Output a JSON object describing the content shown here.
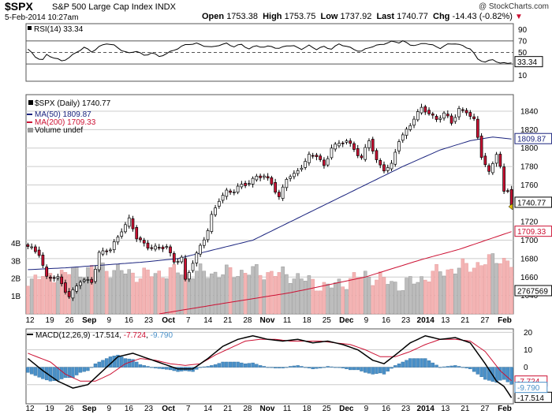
{
  "header": {
    "symbol": "$SPX",
    "fullname": "S&P 500 Large Cap Index  INDX",
    "watermark": "@ StockCharts.com",
    "date_time": "5-Feb-2014 10:27am",
    "open_label": "Open",
    "open": "1753.38",
    "high_label": "High",
    "high": "1753.75",
    "low_label": "Low",
    "low": "1737.92",
    "last_label": "Last",
    "last": "1740.77",
    "chg_label": "Chg",
    "chg": "-14.43 (-0.82%)",
    "chg_arrow": "▼"
  },
  "colors": {
    "up_candle": "#ffffff",
    "down_candle": "#cc1133",
    "ma50": "#1a237e",
    "ma200": "#cc1133",
    "volume_up": "#bdbdbd",
    "volume_down": "#f4b4b4",
    "macd_line": "#000000",
    "signal_line": "#cc1133",
    "histogram": "#4a90c8",
    "grid": "#cccccc",
    "background": "#ffffff"
  },
  "x_axis": {
    "labels": [
      {
        "text": "12",
        "bold": false
      },
      {
        "text": "19",
        "bold": false
      },
      {
        "text": "26",
        "bold": false
      },
      {
        "text": "Sep",
        "bold": true
      },
      {
        "text": "9",
        "bold": false
      },
      {
        "text": "16",
        "bold": false
      },
      {
        "text": "23",
        "bold": false
      },
      {
        "text": "Oct",
        "bold": true
      },
      {
        "text": "7",
        "bold": false
      },
      {
        "text": "14",
        "bold": false
      },
      {
        "text": "21",
        "bold": false
      },
      {
        "text": "28",
        "bold": false
      },
      {
        "text": "Nov",
        "bold": true
      },
      {
        "text": "11",
        "bold": false
      },
      {
        "text": "18",
        "bold": false
      },
      {
        "text": "25",
        "bold": false
      },
      {
        "text": "Dec",
        "bold": true
      },
      {
        "text": "9",
        "bold": false
      },
      {
        "text": "16",
        "bold": false
      },
      {
        "text": "23",
        "bold": false
      },
      {
        "text": "2014",
        "bold": true
      },
      {
        "text": "13",
        "bold": false
      },
      {
        "text": "21",
        "bold": false
      },
      {
        "text": "27",
        "bold": false
      },
      {
        "text": "Feb",
        "bold": true
      }
    ]
  },
  "chart_data": [
    {
      "type": "line",
      "panel": "rsi",
      "title": "RSI(14) 33.34",
      "ylim": [
        0,
        100
      ],
      "y_ticks": [
        "90",
        "70",
        "50",
        "30",
        "10"
      ],
      "reference_lines": [
        70,
        50,
        30
      ],
      "current_label": "33.34",
      "keypoints": [
        {
          "x": 0,
          "y": 55
        },
        {
          "x": 2,
          "y": 42
        },
        {
          "x": 4,
          "y": 38
        },
        {
          "x": 5,
          "y": 46
        },
        {
          "x": 7,
          "y": 40
        },
        {
          "x": 9,
          "y": 35
        },
        {
          "x": 11,
          "y": 42
        },
        {
          "x": 13,
          "y": 50
        },
        {
          "x": 15,
          "y": 58
        },
        {
          "x": 17,
          "y": 52
        },
        {
          "x": 19,
          "y": 60
        },
        {
          "x": 21,
          "y": 65
        },
        {
          "x": 23,
          "y": 62
        },
        {
          "x": 25,
          "y": 55
        },
        {
          "x": 27,
          "y": 48
        },
        {
          "x": 29,
          "y": 52
        },
        {
          "x": 31,
          "y": 45
        },
        {
          "x": 33,
          "y": 50
        },
        {
          "x": 35,
          "y": 42
        },
        {
          "x": 37,
          "y": 48
        },
        {
          "x": 39,
          "y": 55
        },
        {
          "x": 41,
          "y": 60
        },
        {
          "x": 43,
          "y": 64
        },
        {
          "x": 45,
          "y": 66
        },
        {
          "x": 47,
          "y": 62
        },
        {
          "x": 49,
          "y": 58
        },
        {
          "x": 51,
          "y": 63
        },
        {
          "x": 53,
          "y": 66
        },
        {
          "x": 55,
          "y": 60
        },
        {
          "x": 57,
          "y": 63
        },
        {
          "x": 59,
          "y": 57
        },
        {
          "x": 61,
          "y": 62
        },
        {
          "x": 63,
          "y": 58
        },
        {
          "x": 65,
          "y": 61
        },
        {
          "x": 67,
          "y": 57
        },
        {
          "x": 69,
          "y": 62
        },
        {
          "x": 71,
          "y": 60
        },
        {
          "x": 73,
          "y": 57
        },
        {
          "x": 75,
          "y": 62
        },
        {
          "x": 77,
          "y": 55
        },
        {
          "x": 79,
          "y": 60
        },
        {
          "x": 81,
          "y": 57
        },
        {
          "x": 83,
          "y": 64
        },
        {
          "x": 85,
          "y": 60
        },
        {
          "x": 87,
          "y": 56
        },
        {
          "x": 89,
          "y": 52
        },
        {
          "x": 91,
          "y": 58
        },
        {
          "x": 93,
          "y": 62
        },
        {
          "x": 95,
          "y": 66
        },
        {
          "x": 97,
          "y": 68
        },
        {
          "x": 99,
          "y": 67
        },
        {
          "x": 100,
          "y": 70
        },
        {
          "x": 102,
          "y": 64
        },
        {
          "x": 104,
          "y": 62
        },
        {
          "x": 106,
          "y": 66
        },
        {
          "x": 108,
          "y": 63
        },
        {
          "x": 110,
          "y": 58
        },
        {
          "x": 112,
          "y": 63
        },
        {
          "x": 114,
          "y": 66
        },
        {
          "x": 116,
          "y": 62
        },
        {
          "x": 118,
          "y": 56
        },
        {
          "x": 120,
          "y": 38
        },
        {
          "x": 122,
          "y": 34
        },
        {
          "x": 124,
          "y": 38
        },
        {
          "x": 126,
          "y": 30
        },
        {
          "x": 128,
          "y": 32
        },
        {
          "x": 129,
          "y": 33.34
        }
      ]
    },
    {
      "type": "candlestick",
      "panel": "price",
      "title": "$SPX (Daily) 1740.77",
      "ylim": [
        1620,
        1858
      ],
      "y_ticks": [
        "1840",
        "1820",
        "1800",
        "1780",
        "1760",
        "1740",
        "1720",
        "1700",
        "1680",
        "1660",
        "1640"
      ],
      "legend": [
        "$SPX (Daily) 1740.77",
        "MA(50) 1809.87",
        "MA(200) 1709.33",
        "Volume undef"
      ],
      "current_labels": {
        "price": "1740.77",
        "ma50": "1809.87",
        "ma200": "1709.33"
      },
      "close_keypoints": [
        {
          "x": 0,
          "y": 1692
        },
        {
          "x": 3,
          "y": 1686
        },
        {
          "x": 5,
          "y": 1660
        },
        {
          "x": 8,
          "y": 1658
        },
        {
          "x": 11,
          "y": 1640
        },
        {
          "x": 14,
          "y": 1655
        },
        {
          "x": 17,
          "y": 1656
        },
        {
          "x": 19,
          "y": 1686
        },
        {
          "x": 22,
          "y": 1689
        },
        {
          "x": 25,
          "y": 1712
        },
        {
          "x": 27,
          "y": 1722
        },
        {
          "x": 29,
          "y": 1702
        },
        {
          "x": 32,
          "y": 1694
        },
        {
          "x": 35,
          "y": 1690
        },
        {
          "x": 37,
          "y": 1693
        },
        {
          "x": 39,
          "y": 1678
        },
        {
          "x": 41,
          "y": 1680
        },
        {
          "x": 42,
          "y": 1655
        },
        {
          "x": 44,
          "y": 1676
        },
        {
          "x": 46,
          "y": 1695
        },
        {
          "x": 48,
          "y": 1710
        },
        {
          "x": 49,
          "y": 1725
        },
        {
          "x": 51,
          "y": 1744
        },
        {
          "x": 53,
          "y": 1754
        },
        {
          "x": 55,
          "y": 1753
        },
        {
          "x": 57,
          "y": 1759
        },
        {
          "x": 59,
          "y": 1763
        },
        {
          "x": 61,
          "y": 1770
        },
        {
          "x": 63,
          "y": 1768
        },
        {
          "x": 65,
          "y": 1762
        },
        {
          "x": 67,
          "y": 1747
        },
        {
          "x": 69,
          "y": 1767
        },
        {
          "x": 71,
          "y": 1770
        },
        {
          "x": 73,
          "y": 1781
        },
        {
          "x": 75,
          "y": 1792
        },
        {
          "x": 77,
          "y": 1791
        },
        {
          "x": 79,
          "y": 1780
        },
        {
          "x": 81,
          "y": 1802
        },
        {
          "x": 83,
          "y": 1804
        },
        {
          "x": 85,
          "y": 1807
        },
        {
          "x": 87,
          "y": 1800
        },
        {
          "x": 89,
          "y": 1789
        },
        {
          "x": 91,
          "y": 1808
        },
        {
          "x": 93,
          "y": 1786
        },
        {
          "x": 95,
          "y": 1778
        },
        {
          "x": 97,
          "y": 1781
        },
        {
          "x": 99,
          "y": 1808
        },
        {
          "x": 101,
          "y": 1820
        },
        {
          "x": 103,
          "y": 1833
        },
        {
          "x": 105,
          "y": 1842
        },
        {
          "x": 107,
          "y": 1838
        },
        {
          "x": 109,
          "y": 1832
        },
        {
          "x": 111,
          "y": 1837
        },
        {
          "x": 113,
          "y": 1827
        },
        {
          "x": 115,
          "y": 1843
        },
        {
          "x": 117,
          "y": 1840
        },
        {
          "x": 119,
          "y": 1829
        },
        {
          "x": 121,
          "y": 1792
        },
        {
          "x": 123,
          "y": 1774
        },
        {
          "x": 125,
          "y": 1794
        },
        {
          "x": 126,
          "y": 1778
        },
        {
          "x": 127,
          "y": 1751
        },
        {
          "x": 128,
          "y": 1755
        },
        {
          "x": 129,
          "y": 1740.77
        }
      ],
      "ma50_keypoints": [
        {
          "x": 0,
          "y": 1668
        },
        {
          "x": 10,
          "y": 1670
        },
        {
          "x": 20,
          "y": 1673
        },
        {
          "x": 30,
          "y": 1676
        },
        {
          "x": 40,
          "y": 1680
        },
        {
          "x": 50,
          "y": 1690
        },
        {
          "x": 60,
          "y": 1700
        },
        {
          "x": 70,
          "y": 1720
        },
        {
          "x": 80,
          "y": 1740
        },
        {
          "x": 90,
          "y": 1760
        },
        {
          "x": 100,
          "y": 1780
        },
        {
          "x": 110,
          "y": 1798
        },
        {
          "x": 118,
          "y": 1808
        },
        {
          "x": 124,
          "y": 1812
        },
        {
          "x": 129,
          "y": 1809.87
        }
      ],
      "ma200_keypoints": [
        {
          "x": 35,
          "y": 1620
        },
        {
          "x": 50,
          "y": 1630
        },
        {
          "x": 70,
          "y": 1643
        },
        {
          "x": 90,
          "y": 1660
        },
        {
          "x": 105,
          "y": 1679
        },
        {
          "x": 115,
          "y": 1690
        },
        {
          "x": 129,
          "y": 1709.33
        }
      ]
    },
    {
      "type": "bar",
      "panel": "volume",
      "title": "Volume undef",
      "ylim": [
        0,
        5
      ],
      "y_ticks": [
        "4B",
        "3B",
        "2B",
        "1B"
      ],
      "current_label": "2767569",
      "keypoints": [
        {
          "x": 0,
          "y": 2.0
        },
        {
          "x": 10,
          "y": 2.3
        },
        {
          "x": 20,
          "y": 2.6
        },
        {
          "x": 30,
          "y": 2.2
        },
        {
          "x": 40,
          "y": 2.4
        },
        {
          "x": 50,
          "y": 2.3
        },
        {
          "x": 60,
          "y": 2.4
        },
        {
          "x": 70,
          "y": 2.2
        },
        {
          "x": 80,
          "y": 1.5
        },
        {
          "x": 90,
          "y": 2.2
        },
        {
          "x": 100,
          "y": 1.6
        },
        {
          "x": 110,
          "y": 2.4
        },
        {
          "x": 120,
          "y": 2.8
        },
        {
          "x": 126,
          "y": 3.2
        },
        {
          "x": 129,
          "y": 2.8
        }
      ]
    },
    {
      "type": "line",
      "panel": "macd",
      "title": "MACD(12,26,9) -17.514, -7.724, -9.790",
      "series_names": {
        "macd": "MACD(12,26,9)",
        "signal": "-7.724",
        "histogram": "-9.790"
      },
      "ylim": [
        -21,
        22
      ],
      "y_ticks": [
        "20",
        "10",
        "0",
        "-10"
      ],
      "current_labels": {
        "macd": "-17.514",
        "signal": "-7.724",
        "histogram": "-9.790"
      },
      "macd_keypoints": [
        {
          "x": 0,
          "y": 5
        },
        {
          "x": 4,
          "y": -2
        },
        {
          "x": 8,
          "y": -8
        },
        {
          "x": 12,
          "y": -12
        },
        {
          "x": 16,
          "y": -10
        },
        {
          "x": 20,
          "y": -2
        },
        {
          "x": 24,
          "y": 6
        },
        {
          "x": 28,
          "y": 8
        },
        {
          "x": 32,
          "y": 5
        },
        {
          "x": 36,
          "y": 2
        },
        {
          "x": 40,
          "y": -1
        },
        {
          "x": 44,
          "y": -1
        },
        {
          "x": 48,
          "y": 5
        },
        {
          "x": 52,
          "y": 12
        },
        {
          "x": 56,
          "y": 16
        },
        {
          "x": 60,
          "y": 18
        },
        {
          "x": 64,
          "y": 16
        },
        {
          "x": 68,
          "y": 15
        },
        {
          "x": 72,
          "y": 16
        },
        {
          "x": 76,
          "y": 14
        },
        {
          "x": 80,
          "y": 15
        },
        {
          "x": 84,
          "y": 13
        },
        {
          "x": 88,
          "y": 10
        },
        {
          "x": 92,
          "y": 4
        },
        {
          "x": 95,
          "y": 2
        },
        {
          "x": 98,
          "y": 7
        },
        {
          "x": 102,
          "y": 14
        },
        {
          "x": 106,
          "y": 18
        },
        {
          "x": 110,
          "y": 16
        },
        {
          "x": 114,
          "y": 17
        },
        {
          "x": 118,
          "y": 14
        },
        {
          "x": 122,
          "y": 2
        },
        {
          "x": 125,
          "y": -8
        },
        {
          "x": 127,
          "y": -11
        },
        {
          "x": 129,
          "y": -17.514
        }
      ],
      "signal_keypoints": [
        {
          "x": 0,
          "y": 8
        },
        {
          "x": 6,
          "y": 3
        },
        {
          "x": 10,
          "y": -4
        },
        {
          "x": 14,
          "y": -8
        },
        {
          "x": 18,
          "y": -8
        },
        {
          "x": 22,
          "y": -4
        },
        {
          "x": 26,
          "y": 2
        },
        {
          "x": 30,
          "y": 5
        },
        {
          "x": 34,
          "y": 4
        },
        {
          "x": 38,
          "y": 2
        },
        {
          "x": 42,
          "y": 1
        },
        {
          "x": 46,
          "y": 2
        },
        {
          "x": 50,
          "y": 7
        },
        {
          "x": 54,
          "y": 11
        },
        {
          "x": 58,
          "y": 15
        },
        {
          "x": 62,
          "y": 16
        },
        {
          "x": 66,
          "y": 16
        },
        {
          "x": 70,
          "y": 15
        },
        {
          "x": 74,
          "y": 15
        },
        {
          "x": 78,
          "y": 15
        },
        {
          "x": 82,
          "y": 14
        },
        {
          "x": 86,
          "y": 13
        },
        {
          "x": 90,
          "y": 10
        },
        {
          "x": 94,
          "y": 6
        },
        {
          "x": 98,
          "y": 6
        },
        {
          "x": 102,
          "y": 9
        },
        {
          "x": 106,
          "y": 13
        },
        {
          "x": 110,
          "y": 16
        },
        {
          "x": 114,
          "y": 16
        },
        {
          "x": 118,
          "y": 15
        },
        {
          "x": 122,
          "y": 9
        },
        {
          "x": 126,
          "y": -2
        },
        {
          "x": 129,
          "y": -7.724
        }
      ]
    }
  ]
}
